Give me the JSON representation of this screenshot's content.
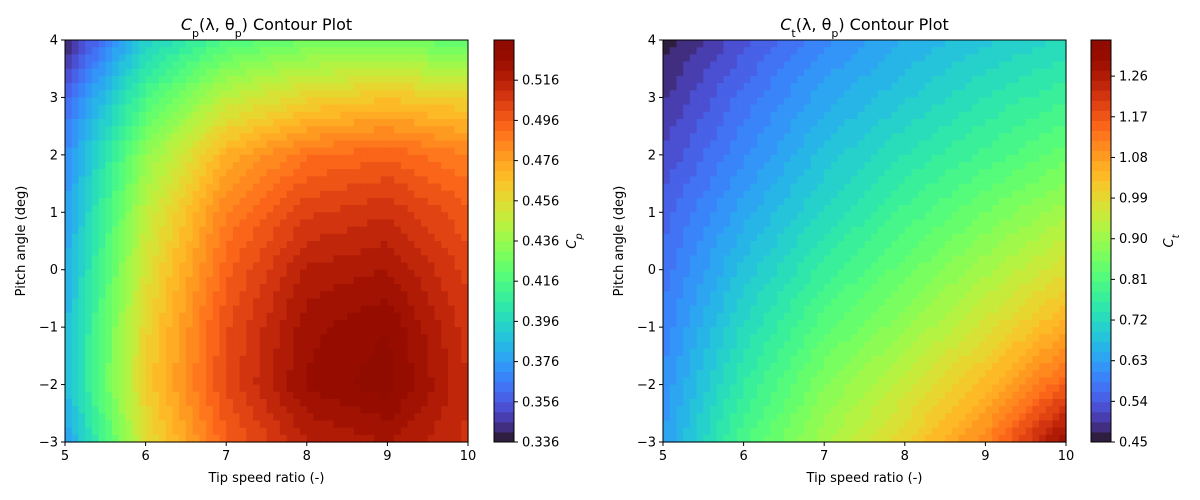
{
  "chart_data": [
    {
      "type": "heatmap",
      "title": "C_p(λ, θ_p) Contour Plot",
      "title_parts": {
        "sym": "C",
        "sub": "p",
        "args_open": "(λ, θ",
        "args_sub": "p",
        "args_close": ")",
        "suffix": " Contour Plot"
      },
      "xlabel": "Tip speed ratio (-)",
      "ylabel": "Pitch angle (deg)",
      "colorbar_label": {
        "sym": "C",
        "sub": "p"
      },
      "x": [
        5,
        6,
        7,
        8,
        9,
        10
      ],
      "y": [
        -3,
        -2,
        -1,
        0,
        1,
        2,
        3,
        4
      ],
      "xlim": [
        5,
        10
      ],
      "ylim": [
        -3,
        4
      ],
      "x_ticks": [
        "5",
        "6",
        "7",
        "8",
        "9",
        "10"
      ],
      "y_ticks": [
        "−3",
        "−2",
        "−1",
        "0",
        "1",
        "2",
        "3",
        "4"
      ],
      "colorbar_range": [
        0.336,
        0.536
      ],
      "colorbar_ticks": [
        "0.336",
        "0.356",
        "0.376",
        "0.396",
        "0.416",
        "0.436",
        "0.456",
        "0.476",
        "0.496",
        "0.516"
      ],
      "colorbar_tick_values": [
        0.336,
        0.356,
        0.376,
        0.396,
        0.416,
        0.436,
        0.456,
        0.476,
        0.496,
        0.516
      ],
      "colormap": "turbo",
      "z": [
        [
          0.375,
          0.455,
          0.495,
          0.515,
          0.521,
          0.51
        ],
        [
          0.385,
          0.462,
          0.502,
          0.527,
          0.534,
          0.511
        ],
        [
          0.384,
          0.459,
          0.5,
          0.524,
          0.531,
          0.508
        ],
        [
          0.38,
          0.453,
          0.494,
          0.517,
          0.521,
          0.504
        ],
        [
          0.375,
          0.446,
          0.486,
          0.505,
          0.51,
          0.497
        ],
        [
          0.37,
          0.434,
          0.472,
          0.49,
          0.495,
          0.486
        ],
        [
          0.36,
          0.414,
          0.446,
          0.459,
          0.465,
          0.46
        ],
        [
          0.34,
          0.392,
          0.416,
          0.426,
          0.428,
          0.42
        ]
      ]
    },
    {
      "type": "heatmap",
      "title": "C_t(λ, θ_p) Contour Plot",
      "title_parts": {
        "sym": "C",
        "sub": "t",
        "args_open": "(λ, θ",
        "args_sub": "p",
        "args_close": ")",
        "suffix": " Contour Plot"
      },
      "xlabel": "Tip speed ratio (-)",
      "ylabel": "Pitch angle (deg)",
      "colorbar_label": {
        "sym": "C",
        "sub": "t"
      },
      "x": [
        5,
        6,
        7,
        8,
        9,
        10
      ],
      "y": [
        -3,
        -2,
        -1,
        0,
        1,
        2,
        3,
        4
      ],
      "xlim": [
        5,
        10
      ],
      "ylim": [
        -3,
        4
      ],
      "x_ticks": [
        "5",
        "6",
        "7",
        "8",
        "9",
        "10"
      ],
      "y_ticks": [
        "−3",
        "−2",
        "−1",
        "0",
        "1",
        "2",
        "3",
        "4"
      ],
      "colorbar_range": [
        0.45,
        1.34
      ],
      "colorbar_ticks": [
        "0.45",
        "0.54",
        "0.63",
        "0.72",
        "0.81",
        "0.90",
        "0.99",
        "1.08",
        "1.17",
        "1.26"
      ],
      "colorbar_tick_values": [
        0.45,
        0.54,
        0.63,
        0.72,
        0.81,
        0.9,
        0.99,
        1.08,
        1.17,
        1.26
      ],
      "colormap": "turbo",
      "z": [
        [
          0.63,
          0.8,
          0.91,
          1.0,
          1.11,
          1.3
        ],
        [
          0.61,
          0.76,
          0.87,
          0.95,
          1.04,
          1.16
        ],
        [
          0.59,
          0.72,
          0.82,
          0.89,
          0.97,
          1.06
        ],
        [
          0.57,
          0.68,
          0.77,
          0.84,
          0.91,
          0.98
        ],
        [
          0.55,
          0.64,
          0.72,
          0.79,
          0.85,
          0.91
        ],
        [
          0.52,
          0.6,
          0.68,
          0.74,
          0.79,
          0.84
        ],
        [
          0.49,
          0.57,
          0.64,
          0.69,
          0.74,
          0.78
        ],
        [
          0.46,
          0.53,
          0.6,
          0.65,
          0.69,
          0.72
        ]
      ]
    }
  ]
}
